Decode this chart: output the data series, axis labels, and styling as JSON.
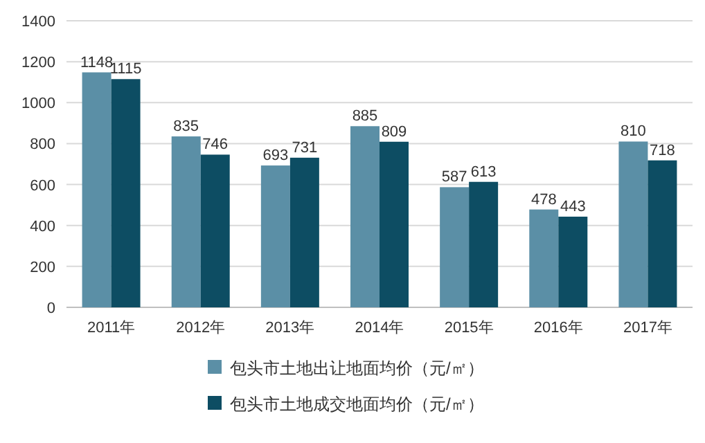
{
  "chart_data": {
    "type": "bar",
    "categories": [
      "2011年",
      "2012年",
      "2013年",
      "2014年",
      "2015年",
      "2016年",
      "2017年"
    ],
    "series": [
      {
        "name": "包头市土地出让地面均价（元/㎡）",
        "color": "#5b8fa6",
        "values": [
          1148,
          835,
          693,
          885,
          587,
          478,
          810
        ]
      },
      {
        "name": "包头市土地成交地面均价（元/㎡）",
        "color": "#0d4d63",
        "values": [
          1115,
          746,
          731,
          809,
          613,
          443,
          718
        ]
      }
    ],
    "ylim": [
      0,
      1400
    ],
    "yticks": [
      0,
      200,
      400,
      600,
      800,
      1000,
      1200,
      1400
    ],
    "grid": "y",
    "legend": "bottom",
    "data_labels": true
  }
}
